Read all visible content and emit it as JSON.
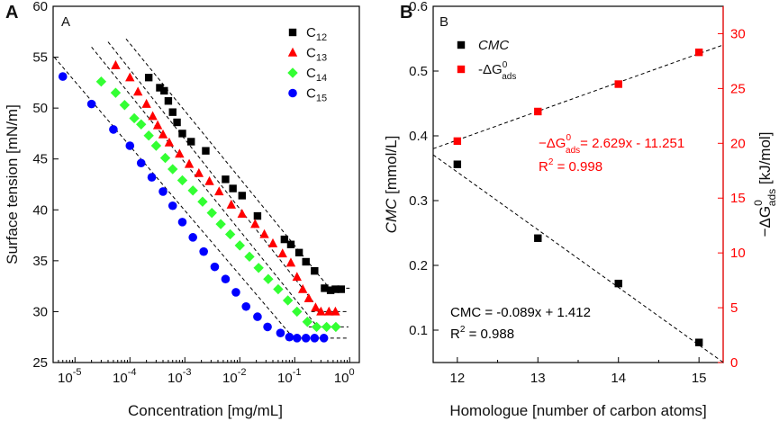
{
  "chart_data": [
    {
      "panel": "A",
      "panel_tag": "A",
      "type": "scatter",
      "x_scale": "log",
      "xlabel": "Concentration [mg/mL]",
      "ylabel": "Surface tension [mN/m]",
      "xlim": [
        4e-06,
        1.5
      ],
      "ylim": [
        25,
        60
      ],
      "x_ticks": [
        {
          "value": 1e-05,
          "base": "10",
          "exp": "-5"
        },
        {
          "value": 0.0001,
          "base": "10",
          "exp": "-4"
        },
        {
          "value": 0.001,
          "base": "10",
          "exp": "-3"
        },
        {
          "value": 0.01,
          "base": "10",
          "exp": "-2"
        },
        {
          "value": 0.1,
          "base": "10",
          "exp": "-1"
        },
        {
          "value": 1,
          "base": "10",
          "exp": "0"
        }
      ],
      "y_ticks": [
        25,
        30,
        35,
        40,
        45,
        50,
        55,
        60
      ],
      "legend_position": "top-right",
      "series": [
        {
          "name": "C12",
          "label_base": "C",
          "label_sub": "12",
          "color": "#000000",
          "marker": "square",
          "points": [
            [
              0.00022,
              53.0
            ],
            [
              0.00035,
              52.0
            ],
            [
              0.00042,
              51.7
            ],
            [
              0.0005,
              50.7
            ],
            [
              0.0006,
              49.6
            ],
            [
              0.00072,
              48.6
            ],
            [
              0.0009,
              47.5
            ],
            [
              0.0013,
              46.7
            ],
            [
              0.0024,
              45.8
            ],
            [
              0.0055,
              43.0
            ],
            [
              0.0075,
              42.1
            ],
            [
              0.011,
              41.4
            ],
            [
              0.021,
              39.4
            ],
            [
              0.065,
              37.1
            ],
            [
              0.085,
              36.6
            ],
            [
              0.12,
              35.8
            ],
            [
              0.16,
              34.9
            ],
            [
              0.23,
              34.0
            ],
            [
              0.35,
              32.3
            ],
            [
              0.45,
              32.1
            ],
            [
              0.55,
              32.2
            ],
            [
              0.7,
              32.2
            ]
          ],
          "fit_lines": [
            [
              [
                8.5e-05,
                56.8
              ],
              [
                0.4,
                32.5
              ]
            ],
            [
              [
                0.3,
                32.3
              ],
              [
                1.0,
                32.3
              ]
            ]
          ]
        },
        {
          "name": "C13",
          "label_base": "C",
          "label_sub": "13",
          "color": "#ff0000",
          "marker": "triangle",
          "points": [
            [
              5.5e-05,
              54.2
            ],
            [
              0.0001,
              53.0
            ],
            [
              0.00014,
              51.6
            ],
            [
              0.0002,
              50.4
            ],
            [
              0.00026,
              49.2
            ],
            [
              0.00032,
              48.3
            ],
            [
              0.0004,
              47.4
            ],
            [
              0.00052,
              46.6
            ],
            [
              0.0008,
              45.5
            ],
            [
              0.0012,
              44.5
            ],
            [
              0.0018,
              43.6
            ],
            [
              0.0028,
              42.8
            ],
            [
              0.0042,
              41.8
            ],
            [
              0.007,
              40.5
            ],
            [
              0.011,
              39.6
            ],
            [
              0.019,
              38.6
            ],
            [
              0.028,
              37.6
            ],
            [
              0.04,
              36.7
            ],
            [
              0.06,
              35.7
            ],
            [
              0.085,
              34.8
            ],
            [
              0.11,
              33.4
            ],
            [
              0.14,
              32.2
            ],
            [
              0.18,
              31.3
            ],
            [
              0.24,
              30.4
            ],
            [
              0.3,
              30.0
            ],
            [
              0.42,
              30.0
            ],
            [
              0.55,
              30.0
            ]
          ],
          "fit_lines": [
            [
              [
                4e-05,
                56.5
              ],
              [
                0.3,
                30.0
              ]
            ],
            [
              [
                0.2,
                30.0
              ],
              [
                0.9,
                30.0
              ]
            ]
          ]
        },
        {
          "name": "C14",
          "label_base": "C",
          "label_sub": "14",
          "color": "#33ff33",
          "marker": "diamond",
          "points": [
            [
              3e-05,
              52.6
            ],
            [
              5.5e-05,
              51.5
            ],
            [
              8e-05,
              50.3
            ],
            [
              0.00012,
              49.0
            ],
            [
              0.00016,
              48.4
            ],
            [
              0.00022,
              47.3
            ],
            [
              0.0003,
              46.3
            ],
            [
              0.00044,
              45.1
            ],
            [
              0.0006,
              44.0
            ],
            [
              0.0009,
              42.9
            ],
            [
              0.0014,
              41.9
            ],
            [
              0.0021,
              40.8
            ],
            [
              0.0031,
              39.7
            ],
            [
              0.0045,
              38.6
            ],
            [
              0.0067,
              37.6
            ],
            [
              0.01,
              36.5
            ],
            [
              0.015,
              35.4
            ],
            [
              0.022,
              34.3
            ],
            [
              0.033,
              33.2
            ],
            [
              0.05,
              32.2
            ],
            [
              0.075,
              31.1
            ],
            [
              0.11,
              30.0
            ],
            [
              0.17,
              29.0
            ],
            [
              0.25,
              28.5
            ],
            [
              0.38,
              28.5
            ],
            [
              0.56,
              28.5
            ]
          ],
          "fit_lines": [
            [
              [
                2e-05,
                56.0
              ],
              [
                0.26,
                28.5
              ]
            ],
            [
              [
                0.18,
                28.5
              ],
              [
                0.95,
                28.5
              ]
            ]
          ]
        },
        {
          "name": "C15",
          "label_base": "C",
          "label_sub": "15",
          "color": "#0000ff",
          "marker": "circle",
          "points": [
            [
              6e-06,
              53.1
            ],
            [
              2e-05,
              50.4
            ],
            [
              5e-05,
              47.9
            ],
            [
              0.0001,
              46.3
            ],
            [
              0.00016,
              44.6
            ],
            [
              0.00025,
              43.2
            ],
            [
              0.0004,
              41.8
            ],
            [
              0.0006,
              40.4
            ],
            [
              0.0009,
              38.8
            ],
            [
              0.0014,
              37.3
            ],
            [
              0.0022,
              35.9
            ],
            [
              0.0035,
              34.4
            ],
            [
              0.0055,
              33.2
            ],
            [
              0.0085,
              31.9
            ],
            [
              0.013,
              30.5
            ],
            [
              0.021,
              29.5
            ],
            [
              0.032,
              28.5
            ],
            [
              0.055,
              27.9
            ],
            [
              0.08,
              27.5
            ],
            [
              0.11,
              27.4
            ],
            [
              0.16,
              27.4
            ],
            [
              0.23,
              27.4
            ],
            [
              0.34,
              27.4
            ]
          ],
          "fit_lines": [
            [
              [
                4.2e-06,
                55.0
              ],
              [
                0.095,
                27.4
              ]
            ],
            [
              [
                0.07,
                27.4
              ],
              [
                0.9,
                27.4
              ]
            ]
          ]
        }
      ]
    },
    {
      "panel": "B",
      "panel_tag": "B",
      "type": "scatter",
      "xlabel": "Homologue [number of carbon atoms]",
      "ylabel_left": "CMC [mmol/L]",
      "ylabel_right": "-ΔG0ads [kJ/mol]",
      "ylabel_right_main": "−ΔG",
      "ylabel_right_sup": "0",
      "ylabel_right_sub": "ads",
      "ylabel_right_unit": " [kJ/mol]",
      "xlim": [
        11.7,
        15.3
      ],
      "ylim_left": [
        0.05,
        0.6
      ],
      "ylim_right": [
        0,
        32.5
      ],
      "x_ticks": [
        12,
        13,
        14,
        15
      ],
      "y_ticks_left": [
        0.1,
        0.2,
        0.3,
        0.4,
        0.5,
        0.6
      ],
      "y_ticks_right": [
        0,
        5,
        10,
        15,
        20,
        25,
        30
      ],
      "legend_position": "top-left",
      "series": [
        {
          "name": "CMC",
          "axis": "left",
          "color": "#000000",
          "marker": "square",
          "x": [
            12,
            13,
            14,
            15
          ],
          "values": [
            0.356,
            0.242,
            0.172,
            0.081
          ],
          "fit": {
            "slope": -0.089,
            "intercept": 1.412
          }
        },
        {
          "name": "-ΔG0ads",
          "label_main": "-ΔG",
          "label_sup": "0",
          "label_sub": "ads",
          "axis": "right",
          "color": "#ff0000",
          "marker": "square",
          "x": [
            12,
            13,
            14,
            15
          ],
          "values": [
            20.2,
            22.9,
            25.4,
            28.3
          ],
          "fit": {
            "slope": 2.629,
            "intercept": -11.251
          }
        }
      ],
      "annotations": {
        "dg_eq_main": "−ΔG",
        "dg_eq_sup": "0",
        "dg_eq_sub": "ads",
        "dg_eq_rest": "= 2.629x - 11.251",
        "dg_r2_base": "R",
        "dg_r2_sup": "2",
        "dg_r2_rest": " = 0.998",
        "cmc_eq": "CMC = -0.089x + 1.412",
        "cmc_r2_base": "R",
        "cmc_r2_sup": "2",
        "cmc_r2_rest": " = 0.988"
      }
    }
  ]
}
